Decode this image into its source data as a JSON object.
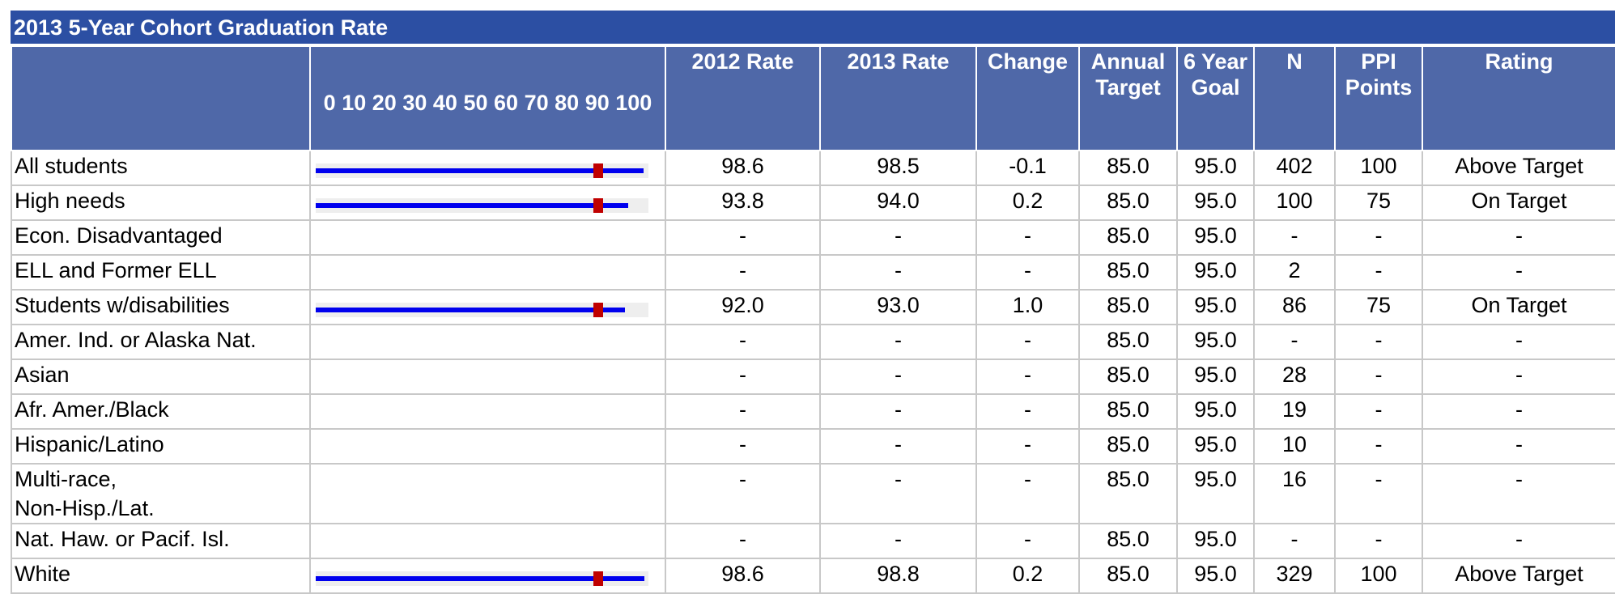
{
  "title": "2013 5-Year Cohort Graduation Rate",
  "table": {
    "bar_ticks": [
      0,
      10,
      20,
      30,
      40,
      50,
      60,
      70,
      80,
      90,
      100
    ],
    "columns": [
      "2012 Rate",
      "2013 Rate",
      "Change",
      "Annual Target",
      "6 Year Goal",
      "N",
      "PPI Points",
      "Rating"
    ],
    "rows": [
      {
        "group": "All students",
        "cells": [
          "98.6",
          "98.5",
          "-0.1",
          "85.0",
          "95.0",
          "402",
          "100",
          "Above Target"
        ]
      },
      {
        "group": "High needs",
        "cells": [
          "93.8",
          "94.0",
          "0.2",
          "85.0",
          "95.0",
          "100",
          "75",
          "On Target"
        ]
      },
      {
        "group": "Econ. Disadvantaged",
        "cells": [
          "-",
          "-",
          "-",
          "85.0",
          "95.0",
          "-",
          "-",
          "-"
        ]
      },
      {
        "group": "ELL and Former ELL",
        "cells": [
          "-",
          "-",
          "-",
          "85.0",
          "95.0",
          "2",
          "-",
          "-"
        ]
      },
      {
        "group": "Students w/disabilities",
        "cells": [
          "92.0",
          "93.0",
          "1.0",
          "85.0",
          "95.0",
          "86",
          "75",
          "On Target"
        ]
      },
      {
        "group": "Amer. Ind. or Alaska Nat.",
        "cells": [
          "-",
          "-",
          "-",
          "85.0",
          "95.0",
          "-",
          "-",
          "-"
        ]
      },
      {
        "group": "Asian",
        "cells": [
          "-",
          "-",
          "-",
          "85.0",
          "95.0",
          "28",
          "-",
          "-"
        ]
      },
      {
        "group": "Afr. Amer./Black",
        "cells": [
          "-",
          "-",
          "-",
          "85.0",
          "95.0",
          "19",
          "-",
          "-"
        ]
      },
      {
        "group": "Hispanic/Latino",
        "cells": [
          "-",
          "-",
          "-",
          "85.0",
          "95.0",
          "10",
          "-",
          "-"
        ]
      },
      {
        "group": "Multi-race,\nNon-Hisp./Lat.",
        "cells": [
          "-",
          "-",
          "-",
          "85.0",
          "95.0",
          "16",
          "-",
          "-"
        ]
      },
      {
        "group": "Nat. Haw. or Pacif. Isl.",
        "cells": [
          "-",
          "-",
          "-",
          "85.0",
          "95.0",
          "-",
          "-",
          "-"
        ]
      },
      {
        "group": "White",
        "cells": [
          "98.6",
          "98.8",
          "0.2",
          "85.0",
          "95.0",
          "329",
          "100",
          "Above Target"
        ]
      }
    ]
  }
}
